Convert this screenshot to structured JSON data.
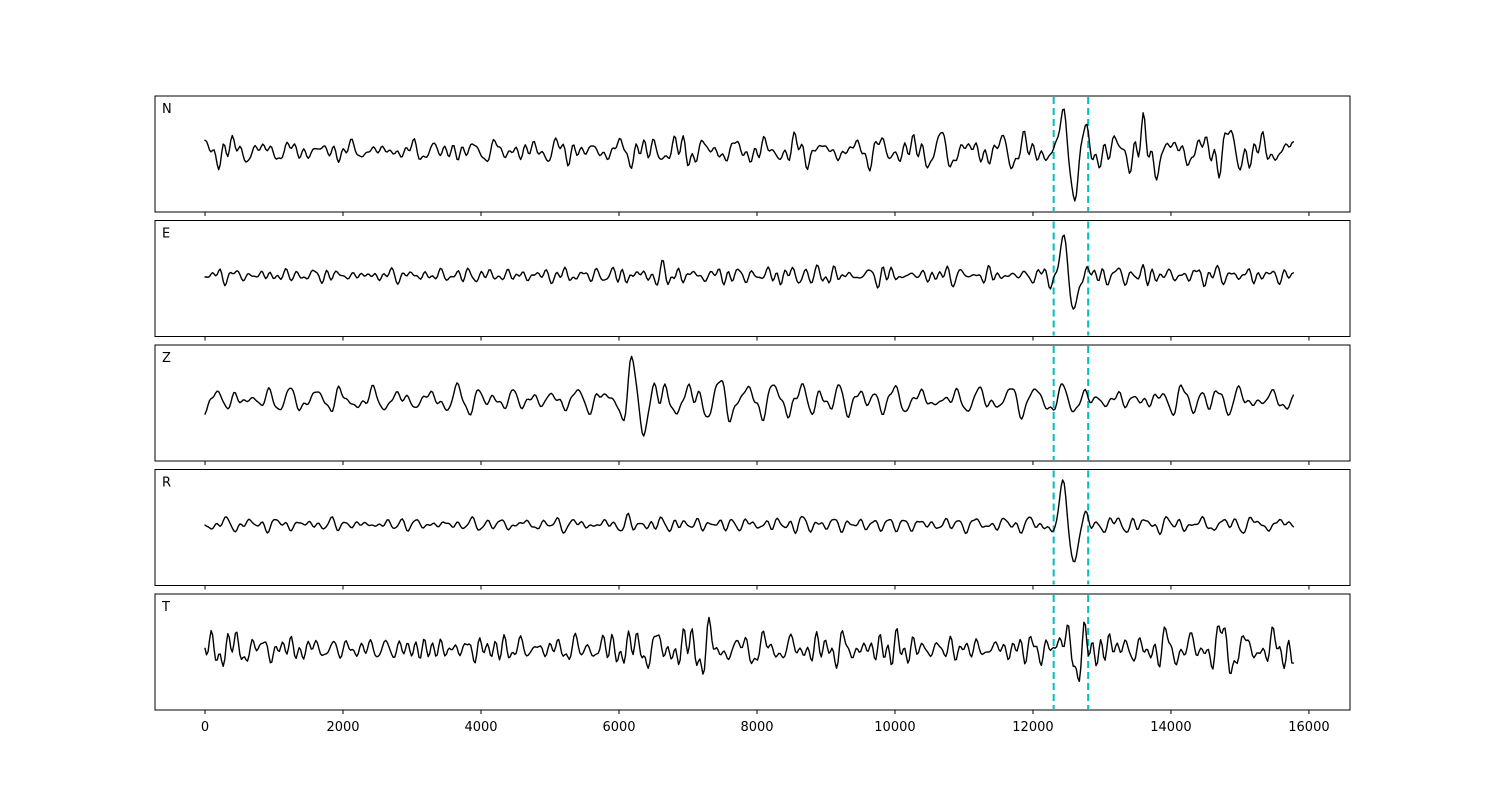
{
  "figure": {
    "background": "#ffffff"
  },
  "chart_data": {
    "type": "line",
    "title": "",
    "xlabel": "",
    "ylabel": "",
    "grid": false,
    "legend": null,
    "x_ticks": [
      0,
      2000,
      4000,
      6000,
      8000,
      10000,
      12000,
      14000,
      16000
    ],
    "xlim": [
      -725,
      16595
    ],
    "x_range": [
      0,
      15790
    ],
    "trace_color": "#000000",
    "vlines": {
      "positions": [
        12300,
        12800
      ],
      "color": "#00bfbf",
      "style": "dashed"
    },
    "panels": [
      {
        "label": "N",
        "envelope": [
          [
            0,
            11
          ],
          [
            500,
            12
          ],
          [
            1200,
            8
          ],
          [
            2200,
            7.5
          ],
          [
            3200,
            8
          ],
          [
            4200,
            9.5
          ],
          [
            5000,
            10
          ],
          [
            5700,
            9
          ],
          [
            6300,
            14
          ],
          [
            7000,
            13
          ],
          [
            7700,
            10
          ],
          [
            8400,
            12
          ],
          [
            9000,
            9
          ],
          [
            9700,
            10
          ],
          [
            10400,
            13
          ],
          [
            11000,
            12
          ],
          [
            11600,
            11
          ],
          [
            12100,
            11
          ],
          [
            12500,
            15
          ],
          [
            13000,
            14
          ],
          [
            13600,
            21
          ],
          [
            14100,
            13
          ],
          [
            14800,
            18
          ],
          [
            15300,
            12
          ],
          [
            15790,
            13
          ]
        ],
        "spikes": [
          [
            12520,
            40
          ],
          [
            13620,
            16
          ],
          [
            14920,
            14
          ]
        ]
      },
      {
        "label": "E",
        "envelope": [
          [
            0,
            5
          ],
          [
            800,
            5.5
          ],
          [
            1800,
            5
          ],
          [
            2800,
            5
          ],
          [
            3800,
            5.5
          ],
          [
            4800,
            6
          ],
          [
            5900,
            6
          ],
          [
            6250,
            9.5
          ],
          [
            6900,
            8
          ],
          [
            7600,
            6.5
          ],
          [
            8300,
            8.5
          ],
          [
            9000,
            7
          ],
          [
            9800,
            7.5
          ],
          [
            10600,
            7
          ],
          [
            11400,
            6
          ],
          [
            12200,
            6
          ],
          [
            12900,
            8
          ],
          [
            13600,
            8.5
          ],
          [
            14300,
            7
          ],
          [
            15100,
            6.5
          ],
          [
            15790,
            6.5
          ]
        ],
        "spikes": [
          [
            12520,
            46
          ]
        ]
      },
      {
        "label": "Z",
        "envelope": [
          [
            0,
            12
          ],
          [
            700,
            10
          ],
          [
            1400,
            9
          ],
          [
            1950,
            14
          ],
          [
            2700,
            10
          ],
          [
            3500,
            11
          ],
          [
            4300,
            10
          ],
          [
            5100,
            9.5
          ],
          [
            5900,
            11
          ],
          [
            6250,
            24
          ],
          [
            6800,
            20
          ],
          [
            7400,
            17
          ],
          [
            8000,
            15
          ],
          [
            8600,
            17
          ],
          [
            9200,
            14
          ],
          [
            9900,
            12
          ],
          [
            10600,
            11
          ],
          [
            11400,
            10.5
          ],
          [
            12200,
            10
          ],
          [
            12900,
            11
          ],
          [
            13500,
            13
          ],
          [
            14100,
            14
          ],
          [
            14700,
            12
          ],
          [
            15300,
            10
          ],
          [
            15790,
            9
          ]
        ],
        "spikes": [
          [
            1930,
            8
          ],
          [
            6280,
            12
          ]
        ]
      },
      {
        "label": "R",
        "envelope": [
          [
            0,
            5
          ],
          [
            900,
            5.5
          ],
          [
            1900,
            5
          ],
          [
            2900,
            5
          ],
          [
            3900,
            5.5
          ],
          [
            4900,
            5.5
          ],
          [
            5900,
            6
          ],
          [
            6250,
            8.5
          ],
          [
            6900,
            7.5
          ],
          [
            7700,
            6
          ],
          [
            8500,
            8
          ],
          [
            9300,
            7
          ],
          [
            10100,
            7
          ],
          [
            10900,
            6
          ],
          [
            11700,
            6
          ],
          [
            12300,
            6
          ],
          [
            13000,
            8
          ],
          [
            13700,
            8
          ],
          [
            14400,
            6.5
          ],
          [
            15100,
            6
          ],
          [
            15790,
            6
          ]
        ],
        "spikes": [
          [
            12520,
            47
          ]
        ]
      },
      {
        "label": "T",
        "envelope": [
          [
            0,
            13
          ],
          [
            800,
            11
          ],
          [
            1600,
            9.5
          ],
          [
            2400,
            10
          ],
          [
            3200,
            11
          ],
          [
            4000,
            10.5
          ],
          [
            4800,
            12
          ],
          [
            5600,
            13
          ],
          [
            6300,
            15
          ],
          [
            7000,
            16
          ],
          [
            7700,
            13.5
          ],
          [
            8400,
            13
          ],
          [
            9100,
            12.5
          ],
          [
            9800,
            14
          ],
          [
            10500,
            13
          ],
          [
            11200,
            12
          ],
          [
            11900,
            11.5
          ],
          [
            12500,
            18
          ],
          [
            12900,
            15
          ],
          [
            13500,
            16
          ],
          [
            14100,
            14
          ],
          [
            14800,
            15
          ],
          [
            15400,
            13
          ],
          [
            15790,
            13
          ]
        ],
        "spikes": [
          [
            12540,
            26
          ],
          [
            13400,
            12
          ],
          [
            14850,
            12
          ]
        ]
      }
    ]
  }
}
